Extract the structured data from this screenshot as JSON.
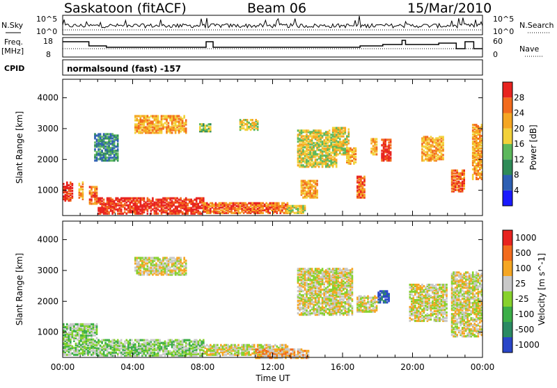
{
  "header": {
    "station": "Saskatoon (fitACF)",
    "beam": "Beam 06",
    "date": "15/Mar/2010"
  },
  "panels": {
    "nsky_label": "N.Sky",
    "nsearch_label": "N.Search",
    "freq_label_1": "Freq.",
    "freq_label_2": "[MHz]",
    "nave_label": "Nave",
    "cpid_label": "CPID",
    "cpid_text": "normalsound (fast) -157",
    "noise_ticks": [
      "10^5",
      "10^0"
    ],
    "noise_right_ticks": [
      "10^5",
      "10^0"
    ],
    "freq_ticks": [
      "18",
      "8"
    ],
    "nave_ticks": [
      "60",
      "0"
    ]
  },
  "chart_data": [
    {
      "type": "heatmap",
      "title": "",
      "ylabel": "Slant Range [km]",
      "xlabel": "Time UT",
      "x_ticks": [
        "00:00",
        "04:00",
        "08:00",
        "12:00",
        "16:00",
        "20:00",
        "00:00"
      ],
      "y_ticks": [
        1000,
        2000,
        3000,
        4000
      ],
      "ylim": [
        180,
        4600
      ],
      "xlim_hours": [
        0,
        24
      ],
      "colorbar": {
        "label": "Power [dB]",
        "ticks": [
          "4",
          "8",
          "12",
          "16",
          "20",
          "24",
          "28"
        ],
        "colors": [
          "#1a1aff",
          "#2d5fb3",
          "#2e8b57",
          "#5cb85c",
          "#f2d13a",
          "#f5a623",
          "#f26b1d",
          "#e8231f"
        ]
      },
      "echo_regions": [
        {
          "t0": 0.0,
          "t1": 0.6,
          "r0": 700,
          "r1": 1300,
          "level": 7
        },
        {
          "t0": 0.9,
          "t1": 1.2,
          "r0": 750,
          "r1": 1300,
          "level": 5
        },
        {
          "t0": 1.5,
          "t1": 2.0,
          "r0": 600,
          "r1": 1150,
          "level": 6
        },
        {
          "t0": 2.0,
          "t1": 8.0,
          "r0": 280,
          "r1": 800,
          "level": 7
        },
        {
          "t0": 8.0,
          "t1": 12.8,
          "r0": 300,
          "r1": 650,
          "level": 6
        },
        {
          "t0": 12.8,
          "t1": 13.8,
          "r0": 300,
          "r1": 550,
          "level": 4
        },
        {
          "t0": 1.8,
          "t1": 3.2,
          "r0": 2000,
          "r1": 2900,
          "level": 2
        },
        {
          "t0": 4.1,
          "t1": 7.0,
          "r0": 2900,
          "r1": 3450,
          "level": 5
        },
        {
          "t0": 7.8,
          "t1": 8.4,
          "r0": 2950,
          "r1": 3200,
          "level": 3
        },
        {
          "t0": 10.1,
          "t1": 11.1,
          "r0": 3000,
          "r1": 3350,
          "level": 4
        },
        {
          "t0": 13.6,
          "t1": 14.5,
          "r0": 800,
          "r1": 1350,
          "level": 5
        },
        {
          "t0": 13.4,
          "t1": 15.6,
          "r0": 1800,
          "r1": 3000,
          "level": 4
        },
        {
          "t0": 15.4,
          "t1": 16.4,
          "r0": 2200,
          "r1": 3100,
          "level": 4
        },
        {
          "t0": 16.2,
          "t1": 16.8,
          "r0": 1900,
          "r1": 2400,
          "level": 5
        },
        {
          "t0": 16.8,
          "t1": 17.3,
          "r0": 800,
          "r1": 1500,
          "level": 6
        },
        {
          "t0": 17.6,
          "t1": 18.0,
          "r0": 2200,
          "r1": 2700,
          "level": 5
        },
        {
          "t0": 18.2,
          "t1": 18.8,
          "r0": 2000,
          "r1": 2700,
          "level": 7
        },
        {
          "t0": 20.5,
          "t1": 21.8,
          "r0": 2000,
          "r1": 2800,
          "level": 5
        },
        {
          "t0": 22.2,
          "t1": 23.0,
          "r0": 1000,
          "r1": 1700,
          "level": 6
        },
        {
          "t0": 23.4,
          "t1": 24.0,
          "r0": 1400,
          "r1": 3200,
          "level": 5
        }
      ]
    },
    {
      "type": "heatmap",
      "title": "",
      "ylabel": "Slant Range [km]",
      "xlabel": "Time UT",
      "x_ticks": [
        "00:00",
        "04:00",
        "08:00",
        "12:00",
        "16:00",
        "20:00",
        "00:00"
      ],
      "y_ticks": [
        1000,
        2000,
        3000,
        4000
      ],
      "ylim": [
        180,
        4600
      ],
      "xlim_hours": [
        0,
        24
      ],
      "colorbar": {
        "label": "Velocity [m s^-1]",
        "ticks": [
          "1000",
          "500",
          "100",
          "25",
          "-25",
          "-100",
          "-500",
          "-1000"
        ],
        "colors": [
          "#2a46c8",
          "#2b8a63",
          "#3cae48",
          "#87d12c",
          "#c8c8c8",
          "#f5a623",
          "#f26b1d",
          "#e8231f"
        ]
      },
      "echo_regions": [
        {
          "t0": 0.0,
          "t1": 2.0,
          "r0": 300,
          "r1": 1300,
          "level": 3
        },
        {
          "t0": 2.0,
          "t1": 8.0,
          "r0": 280,
          "r1": 800,
          "level": 3
        },
        {
          "t0": 8.0,
          "t1": 12.8,
          "r0": 300,
          "r1": 650,
          "level": 4
        },
        {
          "t0": 11.0,
          "t1": 14.0,
          "r0": 200,
          "r1": 500,
          "level": 5
        },
        {
          "t0": 4.1,
          "t1": 7.0,
          "r0": 2900,
          "r1": 3450,
          "level": 4
        },
        {
          "t0": 13.4,
          "t1": 15.6,
          "r0": 1600,
          "r1": 3100,
          "level": 4
        },
        {
          "t0": 15.4,
          "t1": 16.6,
          "r0": 1600,
          "r1": 3100,
          "level": 4
        },
        {
          "t0": 18.0,
          "t1": 18.7,
          "r0": 2000,
          "r1": 2400,
          "level": 0
        },
        {
          "t0": 16.8,
          "t1": 18.0,
          "r0": 1700,
          "r1": 2200,
          "level": 4
        },
        {
          "t0": 19.8,
          "t1": 22.0,
          "r0": 1400,
          "r1": 2600,
          "level": 4
        },
        {
          "t0": 22.2,
          "t1": 24.0,
          "r0": 900,
          "r1": 3000,
          "level": 4
        }
      ]
    }
  ]
}
